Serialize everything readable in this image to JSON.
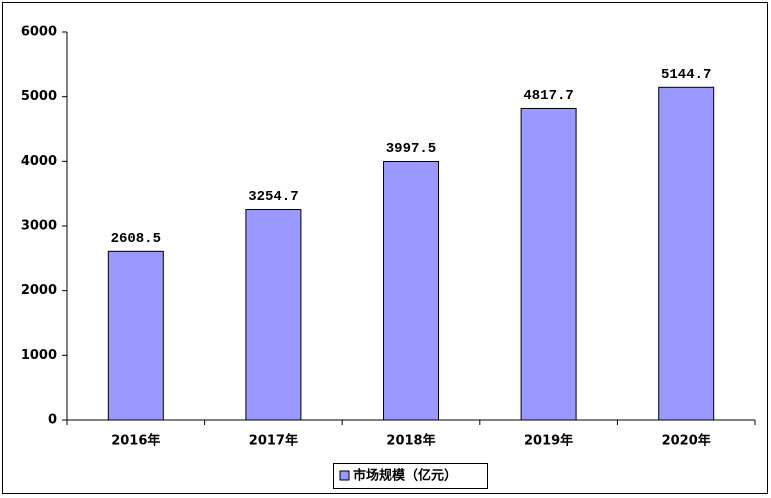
{
  "chart_data": {
    "type": "bar",
    "categories": [
      "2016年",
      "2017年",
      "2018年",
      "2019年",
      "2020年"
    ],
    "series": [
      {
        "name": "市场规模（亿元）",
        "color": "#9999ff",
        "values": [
          2608.5,
          3254.7,
          3997.5,
          4817.7,
          5144.7
        ]
      }
    ],
    "ylim": [
      0,
      6000
    ],
    "yticks": [
      0,
      1000,
      2000,
      3000,
      4000,
      5000,
      6000
    ],
    "legend": "bottom"
  }
}
